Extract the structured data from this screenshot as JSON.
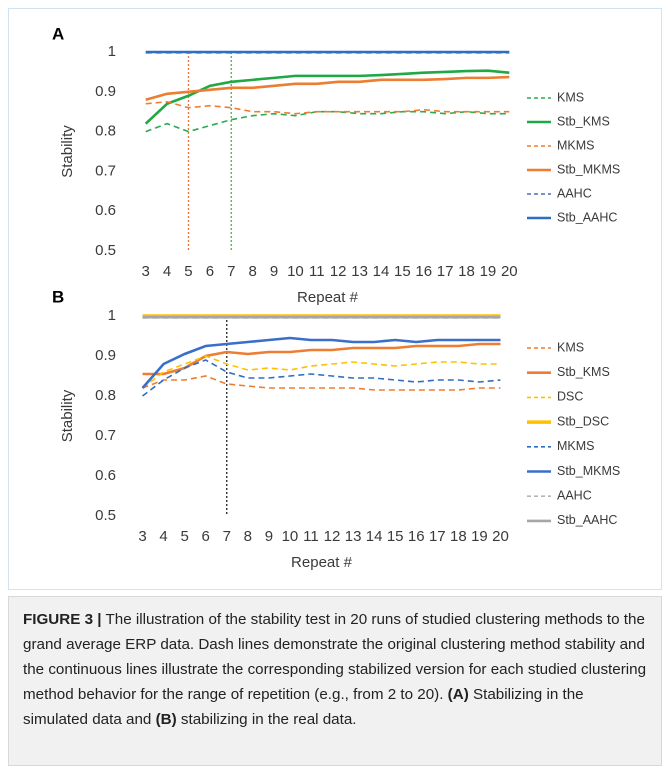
{
  "chart_data": [
    {
      "type": "line",
      "panel": "A",
      "y_label": "Stability",
      "x_label": "Repeat #",
      "x": [
        3,
        4,
        5,
        6,
        7,
        8,
        9,
        10,
        11,
        12,
        13,
        14,
        15,
        16,
        17,
        18,
        19,
        20
      ],
      "xlim": [
        2.5,
        20.5
      ],
      "xticks": [
        3,
        4,
        5,
        6,
        7,
        8,
        9,
        10,
        11,
        12,
        13,
        14,
        15,
        16,
        17,
        18,
        19,
        20
      ],
      "ylim": [
        0.5,
        1
      ],
      "yticks": [
        0.5,
        0.6,
        0.7,
        0.8,
        0.9,
        1
      ],
      "legend": "right",
      "vlines": [
        {
          "x": 5,
          "color": "#e8743b"
        },
        {
          "x": 7,
          "color": "#4caf50"
        }
      ],
      "series": [
        {
          "name": "KMS",
          "color": "#2bab4f",
          "dashed": true,
          "values": [
            0.8,
            0.82,
            0.8,
            0.815,
            0.83,
            0.84,
            0.845,
            0.84,
            0.85,
            0.85,
            0.845,
            0.845,
            0.85,
            0.85,
            0.845,
            0.85,
            0.845,
            0.845
          ]
        },
        {
          "name": "Stb_KMS",
          "color": "#1fa844",
          "dashed": false,
          "values": [
            0.82,
            0.87,
            0.89,
            0.915,
            0.925,
            0.93,
            0.935,
            0.94,
            0.94,
            0.94,
            0.94,
            0.942,
            0.945,
            0.948,
            0.95,
            0.952,
            0.953,
            0.948
          ]
        },
        {
          "name": "MKMS",
          "color": "#ed7d31",
          "dashed": true,
          "values": [
            0.87,
            0.875,
            0.86,
            0.865,
            0.86,
            0.85,
            0.85,
            0.845,
            0.85,
            0.85,
            0.85,
            0.85,
            0.85,
            0.855,
            0.85,
            0.85,
            0.85,
            0.85
          ]
        },
        {
          "name": "Stb_MKMS",
          "color": "#ed7d31",
          "dashed": false,
          "values": [
            0.88,
            0.895,
            0.9,
            0.905,
            0.91,
            0.91,
            0.915,
            0.92,
            0.92,
            0.925,
            0.925,
            0.93,
            0.93,
            0.93,
            0.932,
            0.935,
            0.935,
            0.937
          ]
        },
        {
          "name": "AAHC",
          "color": "#4472c4",
          "dashed": true,
          "values": [
            0.998,
            0.998,
            0.998,
            0.998,
            0.998,
            0.998,
            0.998,
            0.998,
            0.998,
            0.998,
            0.998,
            0.998,
            0.998,
            0.998,
            0.998,
            0.998,
            0.998,
            0.998
          ]
        },
        {
          "name": "Stb_AAHC",
          "color": "#2e6fc4",
          "dashed": false,
          "values": [
            1,
            1,
            1,
            1,
            1,
            1,
            1,
            1,
            1,
            1,
            1,
            1,
            1,
            1,
            1,
            1,
            1,
            1
          ]
        }
      ]
    },
    {
      "type": "line",
      "panel": "B",
      "y_label": "Stability",
      "x_label": "Repeat #",
      "x": [
        3,
        4,
        5,
        6,
        7,
        8,
        9,
        10,
        11,
        12,
        13,
        14,
        15,
        16,
        17,
        18,
        19,
        20
      ],
      "xlim": [
        2.5,
        20.5
      ],
      "xticks": [
        3,
        4,
        5,
        6,
        7,
        8,
        9,
        10,
        11,
        12,
        13,
        14,
        15,
        16,
        17,
        18,
        19,
        20
      ],
      "ylim": [
        0.5,
        1
      ],
      "yticks": [
        0.5,
        0.6,
        0.7,
        0.8,
        0.9,
        1
      ],
      "legend": "right",
      "vlines": [
        {
          "x": 7,
          "color": "#222222"
        }
      ],
      "series": [
        {
          "name": "KMS",
          "color": "#ed7d31",
          "dashed": true,
          "values": [
            0.82,
            0.84,
            0.84,
            0.85,
            0.83,
            0.825,
            0.82,
            0.82,
            0.82,
            0.82,
            0.82,
            0.815,
            0.815,
            0.815,
            0.815,
            0.815,
            0.82,
            0.82
          ]
        },
        {
          "name": "Stb_KMS",
          "color": "#ed7d31",
          "dashed": false,
          "values": [
            0.855,
            0.855,
            0.87,
            0.9,
            0.91,
            0.905,
            0.91,
            0.91,
            0.915,
            0.915,
            0.92,
            0.92,
            0.92,
            0.925,
            0.925,
            0.925,
            0.93,
            0.93
          ]
        },
        {
          "name": "DSC",
          "color": "#ffc000",
          "dashed": true,
          "values": [
            0.82,
            0.86,
            0.88,
            0.9,
            0.88,
            0.865,
            0.87,
            0.865,
            0.875,
            0.88,
            0.885,
            0.88,
            0.875,
            0.88,
            0.885,
            0.885,
            0.88,
            0.88
          ]
        },
        {
          "name": "Stb_DSC",
          "color": "#ffc000",
          "dashed": false,
          "values": [
            1,
            1,
            1,
            1,
            1,
            1,
            1,
            1,
            1,
            1,
            1,
            1,
            1,
            1,
            1,
            1,
            1,
            1
          ]
        },
        {
          "name": "MKMS",
          "color": "#2e6fc4",
          "dashed": true,
          "values": [
            0.8,
            0.84,
            0.87,
            0.89,
            0.86,
            0.845,
            0.845,
            0.85,
            0.855,
            0.85,
            0.845,
            0.845,
            0.84,
            0.835,
            0.84,
            0.84,
            0.835,
            0.84
          ]
        },
        {
          "name": "Stb_MKMS",
          "color": "#3a6fc8",
          "dashed": false,
          "values": [
            0.82,
            0.88,
            0.905,
            0.925,
            0.93,
            0.935,
            0.94,
            0.945,
            0.94,
            0.94,
            0.935,
            0.935,
            0.94,
            0.935,
            0.94,
            0.94,
            0.94,
            0.94
          ]
        },
        {
          "name": "AAHC",
          "color": "#b5b5b5",
          "dashed": true,
          "values": [
            0.995,
            0.995,
            0.995,
            0.995,
            0.995,
            0.995,
            0.995,
            0.995,
            0.995,
            0.995,
            0.995,
            0.995,
            0.995,
            0.995,
            0.995,
            0.995,
            0.995,
            0.995
          ]
        },
        {
          "name": "Stb_AAHC",
          "color": "#a6a6a6",
          "dashed": false,
          "values": [
            0.997,
            0.997,
            0.997,
            0.997,
            0.997,
            0.997,
            0.997,
            0.997,
            0.997,
            0.997,
            0.997,
            0.997,
            0.997,
            0.997,
            0.997,
            0.997,
            0.997,
            0.997
          ]
        }
      ]
    }
  ],
  "caption": {
    "label": "FIGURE 3 |",
    "text1": "The illustration of the stability test in 20 runs of studied clustering methods to the grand average ERP data. Dash lines demonstrate the original clustering method stability and the continuous lines illustrate the corresponding stabilized version for each studied clustering method behavior for the range of repetition (e.g., from 2 to 20).",
    "a": "(A)",
    "text2": "Stabilizing in the simulated data and",
    "b": "(B)",
    "text3": "stabilizing in the real data."
  }
}
